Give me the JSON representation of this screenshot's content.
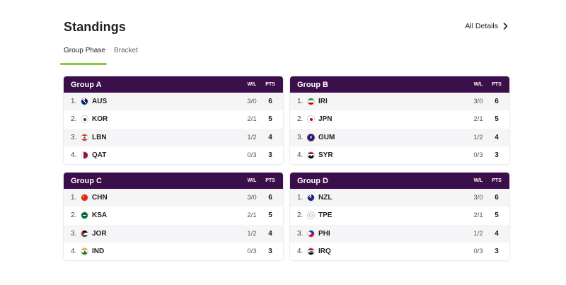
{
  "header": {
    "title": "Standings",
    "all_details": "All Details"
  },
  "tabs": [
    {
      "label": "Group Phase",
      "active": true
    },
    {
      "label": "Bracket",
      "active": false
    }
  ],
  "columns": {
    "wl": "W/L",
    "pts": "PTS"
  },
  "groups": [
    {
      "name": "Group A",
      "rows": [
        {
          "rank": "1.",
          "team": "AUS",
          "wl": "3/0",
          "pts": "6",
          "flag": "flag-australia-icon"
        },
        {
          "rank": "2.",
          "team": "KOR",
          "wl": "2/1",
          "pts": "5",
          "flag": "flag-korea-icon"
        },
        {
          "rank": "3.",
          "team": "LBN",
          "wl": "1/2",
          "pts": "4",
          "flag": "flag-lebanon-icon"
        },
        {
          "rank": "4.",
          "team": "QAT",
          "wl": "0/3",
          "pts": "3",
          "flag": "flag-qatar-icon"
        }
      ]
    },
    {
      "name": "Group B",
      "rows": [
        {
          "rank": "1.",
          "team": "IRI",
          "wl": "3/0",
          "pts": "6",
          "flag": "flag-iran-icon"
        },
        {
          "rank": "2.",
          "team": "JPN",
          "wl": "2/1",
          "pts": "5",
          "flag": "flag-japan-icon"
        },
        {
          "rank": "3.",
          "team": "GUM",
          "wl": "1/2",
          "pts": "4",
          "flag": "flag-guam-icon"
        },
        {
          "rank": "4.",
          "team": "SYR",
          "wl": "0/3",
          "pts": "3",
          "flag": "flag-syria-icon"
        }
      ]
    },
    {
      "name": "Group C",
      "rows": [
        {
          "rank": "1.",
          "team": "CHN",
          "wl": "3/0",
          "pts": "6",
          "flag": "flag-china-icon"
        },
        {
          "rank": "2.",
          "team": "KSA",
          "wl": "2/1",
          "pts": "5",
          "flag": "flag-saudi-arabia-icon"
        },
        {
          "rank": "3.",
          "team": "JOR",
          "wl": "1/2",
          "pts": "4",
          "flag": "flag-jordan-icon"
        },
        {
          "rank": "4.",
          "team": "IND",
          "wl": "0/3",
          "pts": "3",
          "flag": "flag-india-icon"
        }
      ]
    },
    {
      "name": "Group D",
      "rows": [
        {
          "rank": "1.",
          "team": "NZL",
          "wl": "3/0",
          "pts": "6",
          "flag": "flag-new-zealand-icon"
        },
        {
          "rank": "2.",
          "team": "TPE",
          "wl": "2/1",
          "pts": "5",
          "flag": "flag-chinese-taipei-icon"
        },
        {
          "rank": "3.",
          "team": "PHI",
          "wl": "1/2",
          "pts": "4",
          "flag": "flag-philippines-icon"
        },
        {
          "rank": "4.",
          "team": "IRQ",
          "wl": "0/3",
          "pts": "3",
          "flag": "flag-iraq-icon"
        }
      ]
    }
  ],
  "colors": {
    "header_bg": "#3a0f4a",
    "accent": "#8dc63f",
    "row_alt": "#f5f5f7"
  }
}
